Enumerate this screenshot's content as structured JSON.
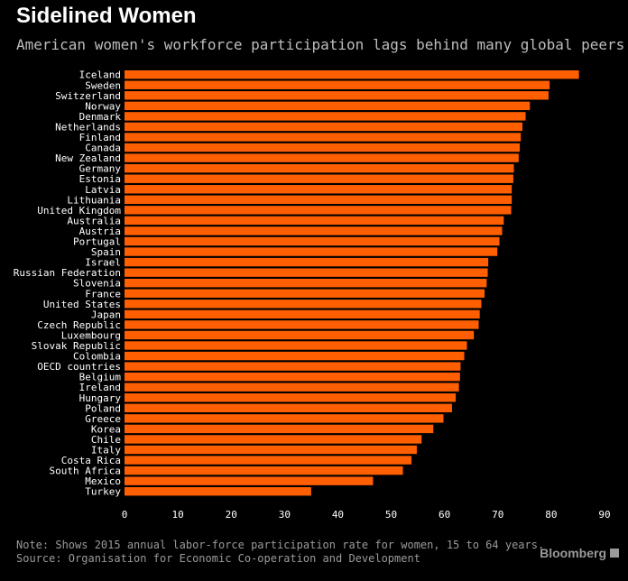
{
  "brand": {
    "name": "Bloomberg"
  },
  "chart_data": {
    "type": "bar",
    "orientation": "horizontal",
    "title": "Sidelined Women",
    "subtitle": "American women's workforce participation lags behind many global peers",
    "xlim": [
      0,
      90
    ],
    "xticks": [
      0,
      10,
      20,
      30,
      40,
      50,
      60,
      70,
      80,
      90
    ],
    "grid": false,
    "bar_color": "#ff5f00",
    "categories": [
      "Iceland",
      "Sweden",
      "Switzerland",
      "Norway",
      "Denmark",
      "Netherlands",
      "Finland",
      "Canada",
      "New Zealand",
      "Germany",
      "Estonia",
      "Latvia",
      "Lithuania",
      "United Kingdom",
      "Australia",
      "Austria",
      "Portugal",
      "Spain",
      "Israel",
      "Russian Federation",
      "Slovenia",
      "France",
      "United States",
      "Japan",
      "Czech Republic",
      "Luxembourg",
      "Slovak Republic",
      "Colombia",
      "OECD countries",
      "Belgium",
      "Ireland",
      "Hungary",
      "Poland",
      "Greece",
      "Korea",
      "Chile",
      "Italy",
      "Costa Rica",
      "South Africa",
      "Mexico",
      "Turkey"
    ],
    "values": [
      85.2,
      79.7,
      79.5,
      76.0,
      75.2,
      74.6,
      74.3,
      74.1,
      73.9,
      73.0,
      72.9,
      72.6,
      72.6,
      72.5,
      71.1,
      70.8,
      70.3,
      69.9,
      68.2,
      68.1,
      67.9,
      67.5,
      66.9,
      66.6,
      66.4,
      65.5,
      64.2,
      63.7,
      63.0,
      62.9,
      62.7,
      62.1,
      61.4,
      59.8,
      57.9,
      55.7,
      54.8,
      53.8,
      52.2,
      46.6,
      35.0
    ],
    "note": "Note: Shows 2015 annual labor-force participation rate for women, 15 to 64 years.",
    "source": "Source: Organisation for Economic Co-operation and Development"
  }
}
